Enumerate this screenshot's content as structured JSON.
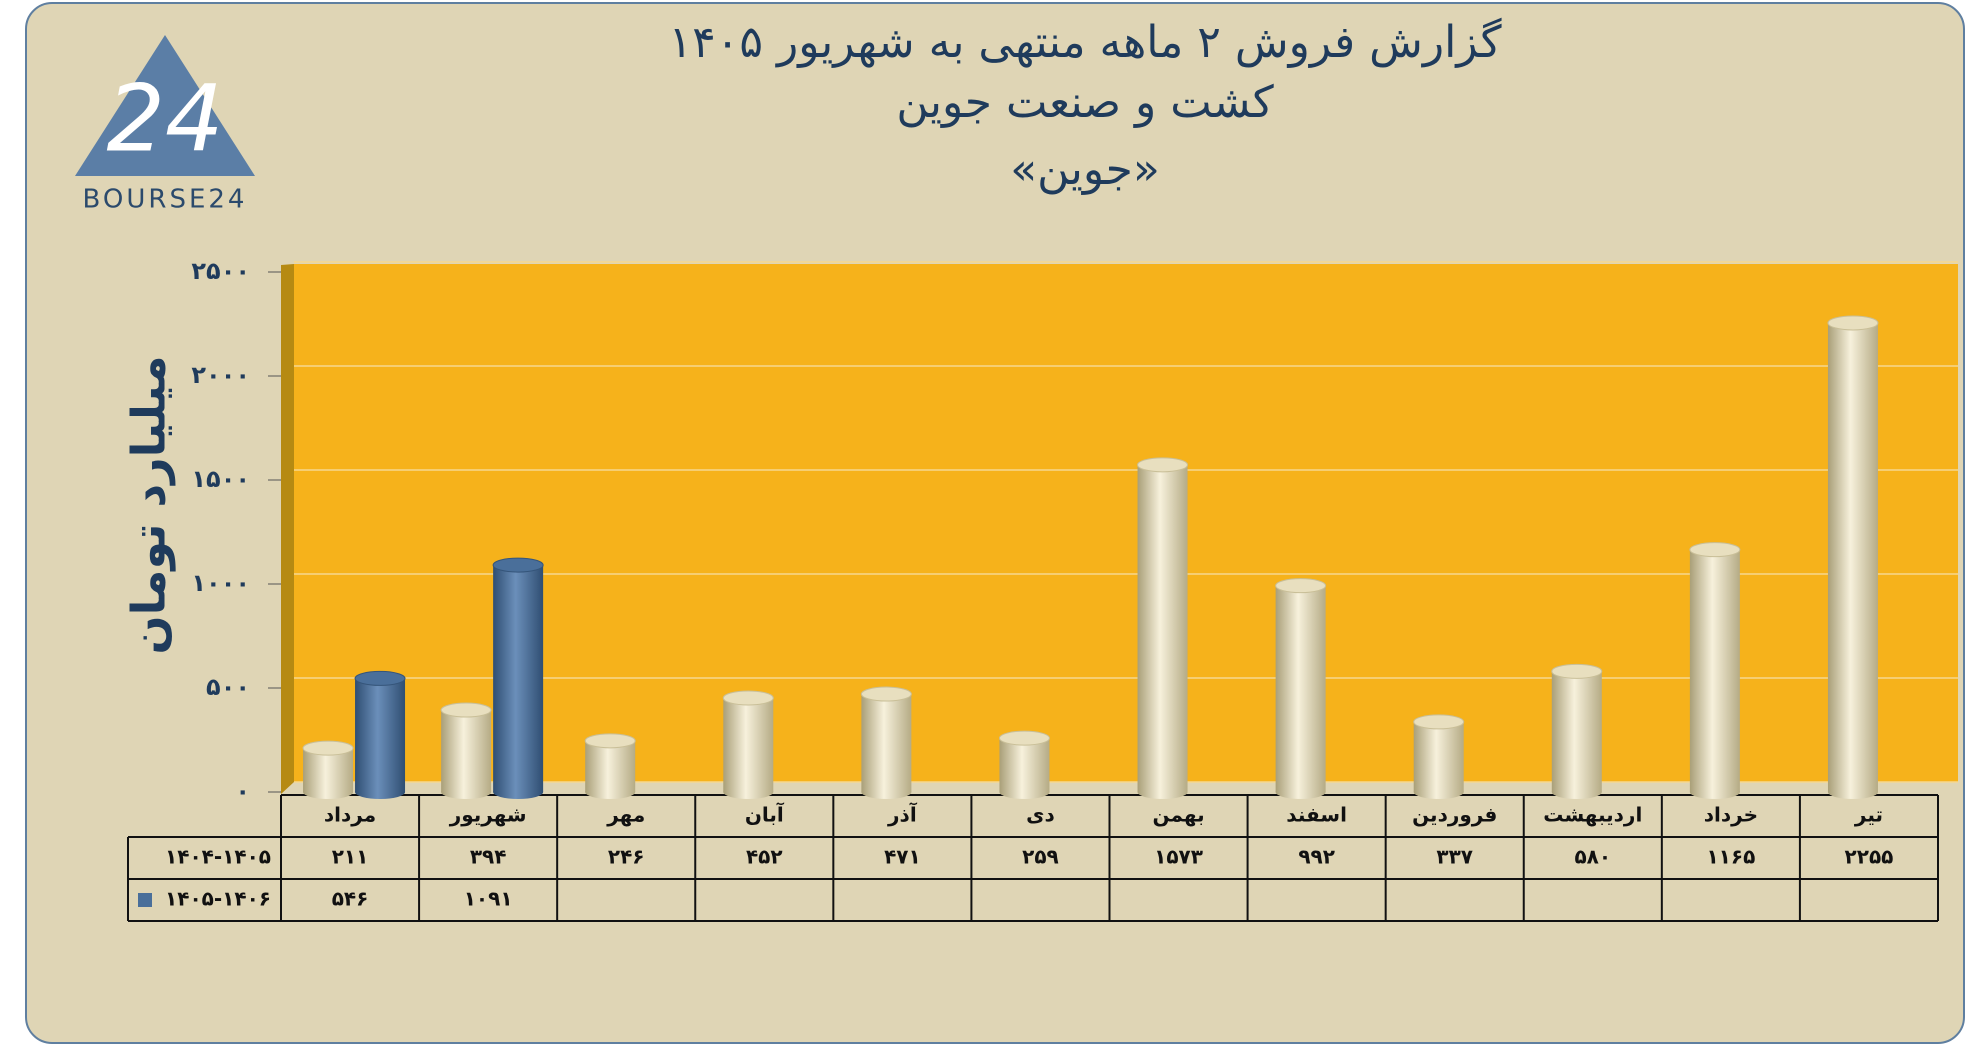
{
  "logo": {
    "mark": "24",
    "text": "BOURSE24"
  },
  "chart_data": {
    "type": "bar",
    "title": "گزارش  فروش ۲ ماهه منتهی به شهریور ۱۴۰۵",
    "subtitle": "کشت و صنعت جوین",
    "subtitle2": "«جوین»",
    "y_label": "میلیارد تومان",
    "categories": [
      "مرداد",
      "شهریور",
      "مهر",
      "آبان",
      "آذر",
      "دی",
      "بهمن",
      "اسفند",
      "فروردین",
      "اردیبهشت",
      "خرداد",
      "تیر"
    ],
    "series": [
      {
        "name": "۱۴۰۴-۱۴۰۵",
        "color": "#e8dfbf",
        "values": [
          211,
          394,
          246,
          452,
          471,
          259,
          1573,
          992,
          337,
          580,
          1165,
          2255
        ],
        "value_labels": [
          "۲۱۱",
          "۳۹۴",
          "۲۴۶",
          "۴۵۲",
          "۴۷۱",
          "۲۵۹",
          "۱۵۷۳",
          "۹۹۲",
          "۳۳۷",
          "۵۸۰",
          "۱۱۶۵",
          "۲۲۵۵"
        ]
      },
      {
        "name": "۱۴۰۵-۱۴۰۶",
        "color": "#4a6f9a",
        "values": [
          546,
          1091,
          null,
          null,
          null,
          null,
          null,
          null,
          null,
          null,
          null,
          null
        ],
        "value_labels": [
          "۵۴۶",
          "۱۰۹۱",
          null,
          null,
          null,
          null,
          null,
          null,
          null,
          null,
          null,
          null
        ]
      }
    ],
    "ylim": [
      0,
      2500
    ],
    "yticks": [
      {
        "value": 0,
        "label": "۰"
      },
      {
        "value": 500,
        "label": "۵۰۰"
      },
      {
        "value": 1000,
        "label": "۱۰۰۰"
      },
      {
        "value": 1500,
        "label": "۱۵۰۰"
      },
      {
        "value": 2000,
        "label": "۲۰۰۰"
      },
      {
        "value": 2500,
        "label": "۲۵۰۰"
      }
    ],
    "grid": true
  }
}
